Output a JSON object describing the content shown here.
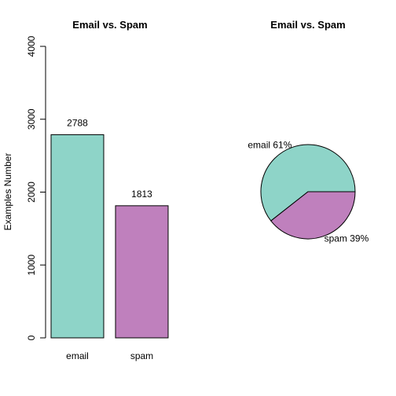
{
  "chart_data": [
    {
      "type": "bar",
      "title": "Email vs. Spam",
      "ylabel": "Examples Number",
      "xlabel": "",
      "categories": [
        "email",
        "spam"
      ],
      "values": [
        2788,
        1813
      ],
      "data_labels": [
        "2788",
        "1813"
      ],
      "ylim": [
        0,
        4000
      ],
      "yticks": [
        0,
        1000,
        2000,
        3000,
        4000
      ],
      "colors": [
        "#8ED4C8",
        "#BF80BD"
      ],
      "grid": false
    },
    {
      "type": "pie",
      "title": "Email vs. Spam",
      "labels": [
        "email 61%",
        "spam 39%"
      ],
      "values": [
        2788,
        1813
      ],
      "colors": [
        "#8ED4C8",
        "#BF80BD"
      ]
    }
  ]
}
